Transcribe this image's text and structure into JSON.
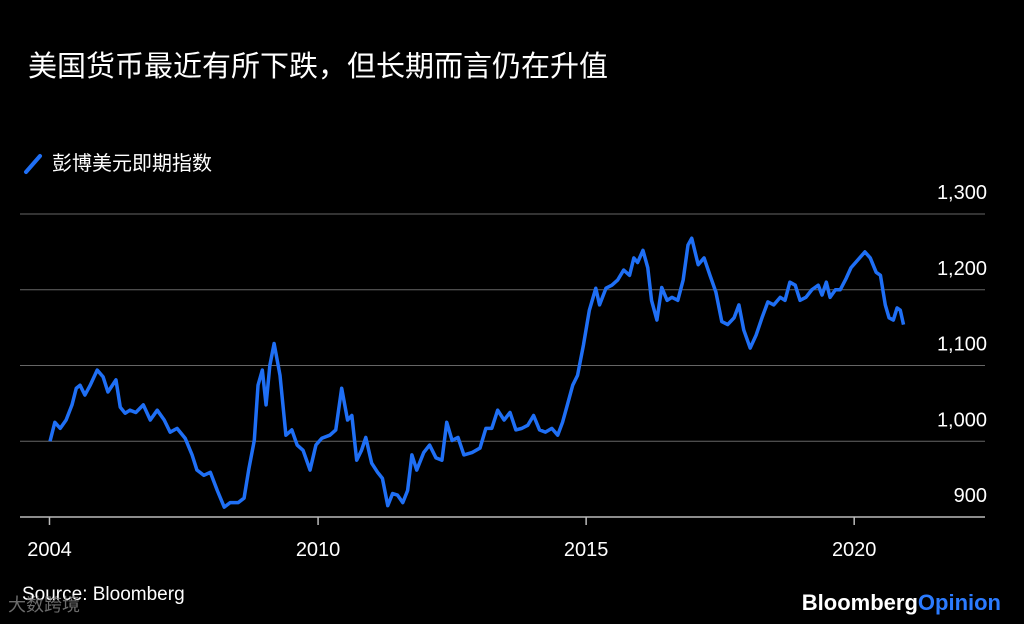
{
  "chart_data": {
    "type": "line",
    "title": "美国货币最近有所下跌，但长期而言仍在升值",
    "source": "Source: Bloomberg",
    "brand": [
      "Bloomberg",
      "Opinion"
    ],
    "watermark": "大数跨境",
    "grid": true,
    "legend": "top-left",
    "xlim": [
      2004.44,
      2022.44
    ],
    "xticks": [
      {
        "value": 2004.99,
        "label": "2004"
      },
      2010,
      2015,
      2020
    ],
    "ylim": [
      900,
      1300
    ],
    "yticks": [
      {
        "value": 900,
        "label": "900"
      },
      {
        "value": 1000,
        "label": "1,000"
      },
      {
        "value": 1100,
        "label": "1,100"
      },
      {
        "value": 1200,
        "label": "1,200"
      },
      {
        "value": 1300,
        "label": "1,300"
      }
    ],
    "x": [
      2005.0,
      2005.09,
      2005.19,
      2005.3,
      2005.41,
      2005.49,
      2005.56,
      2005.65,
      2005.75,
      2005.88,
      2005.99,
      2006.08,
      2006.23,
      2006.31,
      2006.4,
      2006.49,
      2006.6,
      2006.74,
      2006.87,
      2007.0,
      2007.13,
      2007.24,
      2007.37,
      2007.52,
      2007.65,
      2007.74,
      2007.87,
      2007.99,
      2008.12,
      2008.25,
      2008.36,
      2008.51,
      2008.62,
      2008.71,
      2008.81,
      2008.88,
      2008.96,
      2009.03,
      2009.1,
      2009.18,
      2009.29,
      2009.4,
      2009.51,
      2009.61,
      2009.72,
      2009.85,
      2009.96,
      2010.07,
      2010.22,
      2010.33,
      2010.44,
      2010.55,
      2010.63,
      2010.72,
      2010.81,
      2010.89,
      2011.0,
      2011.11,
      2011.2,
      2011.3,
      2011.39,
      2011.48,
      2011.58,
      2011.67,
      2011.75,
      2011.84,
      2011.97,
      2012.08,
      2012.2,
      2012.31,
      2012.4,
      2012.5,
      2012.61,
      2012.72,
      2012.87,
      2013.02,
      2013.13,
      2013.24,
      2013.35,
      2013.47,
      2013.58,
      2013.69,
      2013.8,
      2013.91,
      2014.02,
      2014.13,
      2014.24,
      2014.36,
      2014.47,
      2014.56,
      2014.65,
      2014.75,
      2014.84,
      2014.95,
      2015.06,
      2015.18,
      2015.25,
      2015.37,
      2015.48,
      2015.59,
      2015.7,
      2015.81,
      2015.89,
      2015.96,
      2016.06,
      2016.15,
      2016.22,
      2016.32,
      2016.41,
      2016.51,
      2016.6,
      2016.71,
      2016.81,
      2016.9,
      2016.97,
      2017.09,
      2017.2,
      2017.31,
      2017.42,
      2017.53,
      2017.64,
      2017.76,
      2017.85,
      2017.94,
      2018.06,
      2018.17,
      2018.28,
      2018.39,
      2018.5,
      2018.62,
      2018.71,
      2018.8,
      2018.9,
      2018.99,
      2019.1,
      2019.21,
      2019.33,
      2019.4,
      2019.48,
      2019.55,
      2019.65,
      2019.74,
      2019.85,
      2019.94,
      2020.2,
      2020.3,
      2020.41,
      2020.49,
      2020.58,
      2020.65,
      2020.73,
      2020.8,
      2020.86,
      2020.92
    ],
    "series": [
      {
        "name": "彭博美元即期指数",
        "color": "#1f6ff5",
        "values": [
          1000,
          1025,
          1017,
          1028,
          1048,
          1070,
          1074,
          1061,
          1074,
          1094,
          1085,
          1065,
          1081,
          1045,
          1037,
          1041,
          1038,
          1048,
          1028,
          1041,
          1028,
          1012,
          1017,
          1004,
          982,
          962,
          955,
          959,
          935,
          913,
          919,
          919,
          925,
          964,
          1001,
          1074,
          1094,
          1048,
          1100,
          1129,
          1087,
          1008,
          1015,
          995,
          988,
          962,
          995,
          1004,
          1008,
          1015,
          1070,
          1028,
          1034,
          975,
          988,
          1005,
          971,
          959,
          951,
          915,
          931,
          929,
          919,
          935,
          982,
          962,
          985,
          995,
          978,
          975,
          1025,
          1001,
          1005,
          982,
          985,
          991,
          1017,
          1017,
          1041,
          1028,
          1038,
          1015,
          1017,
          1021,
          1034,
          1015,
          1012,
          1017,
          1008,
          1025,
          1048,
          1074,
          1087,
          1127,
          1173,
          1202,
          1180,
          1202,
          1206,
          1213,
          1226,
          1219,
          1242,
          1236,
          1252,
          1229,
          1186,
          1160,
          1203,
          1186,
          1190,
          1186,
          1213,
          1259,
          1268,
          1233,
          1242,
          1219,
          1197,
          1158,
          1154,
          1163,
          1180,
          1147,
          1123,
          1140,
          1163,
          1184,
          1180,
          1190,
          1186,
          1210,
          1206,
          1186,
          1190,
          1200,
          1206,
          1193,
          1210,
          1190,
          1200,
          1200,
          1215,
          1229,
          1250,
          1242,
          1223,
          1219,
          1180,
          1163,
          1160,
          1176,
          1173,
          1154
        ]
      }
    ]
  }
}
